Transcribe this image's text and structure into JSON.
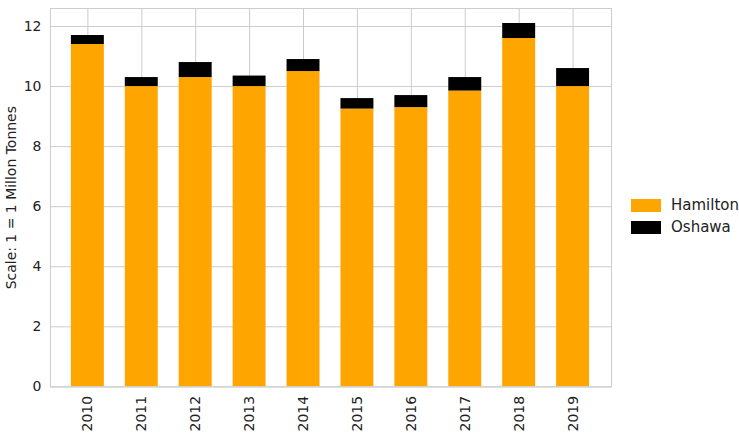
{
  "chart_data": {
    "type": "bar",
    "stacked": true,
    "categories": [
      "2010",
      "2011",
      "2012",
      "2013",
      "2014",
      "2015",
      "2016",
      "2017",
      "2018",
      "2019"
    ],
    "series": [
      {
        "name": "Hamilton",
        "color": "#ffa500",
        "values": [
          11.4,
          10.0,
          10.3,
          10.0,
          10.5,
          9.25,
          9.3,
          9.85,
          11.6,
          10.0
        ]
      },
      {
        "name": "Oshawa",
        "color": "#000000",
        "values": [
          0.3,
          0.3,
          0.5,
          0.35,
          0.4,
          0.35,
          0.4,
          0.45,
          0.5,
          0.6
        ]
      }
    ],
    "y_label": "Scale: 1 = 1 Millon Tonnes",
    "ylim": [
      0,
      12.6
    ],
    "yticks": [
      0,
      2,
      4,
      6,
      8,
      10,
      12
    ],
    "grid": true,
    "legend": "right"
  }
}
